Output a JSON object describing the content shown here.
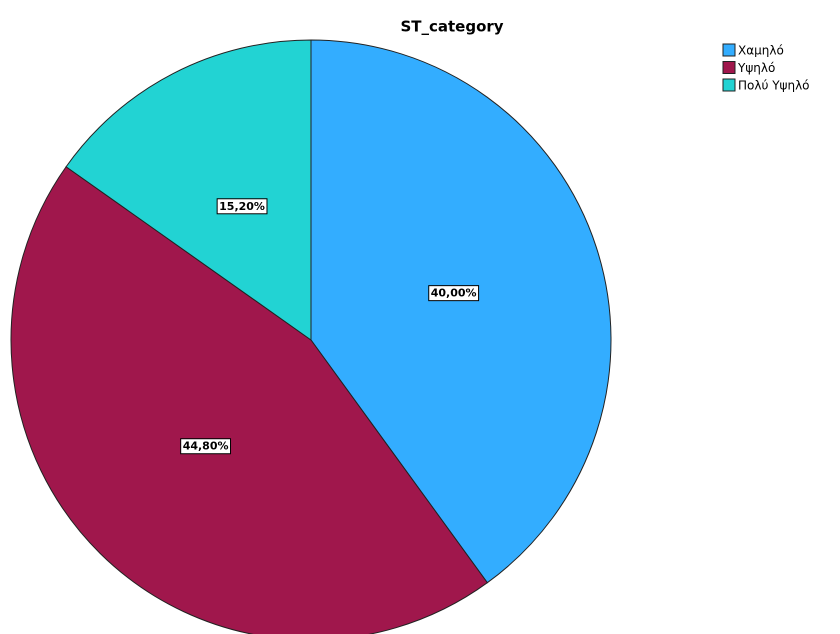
{
  "chart_data": {
    "type": "pie",
    "title": "ST_category",
    "categories": [
      "Χαμηλό",
      "Υψηλό",
      "Πολύ Υψηλό"
    ],
    "values": [
      40,
      44.8,
      15.2
    ],
    "value_labels": [
      "40,00%",
      "44,80%",
      "15,20%"
    ],
    "colors": [
      "#33adff",
      "#a0174c",
      "#22d3d3"
    ],
    "legend": "top-right"
  }
}
